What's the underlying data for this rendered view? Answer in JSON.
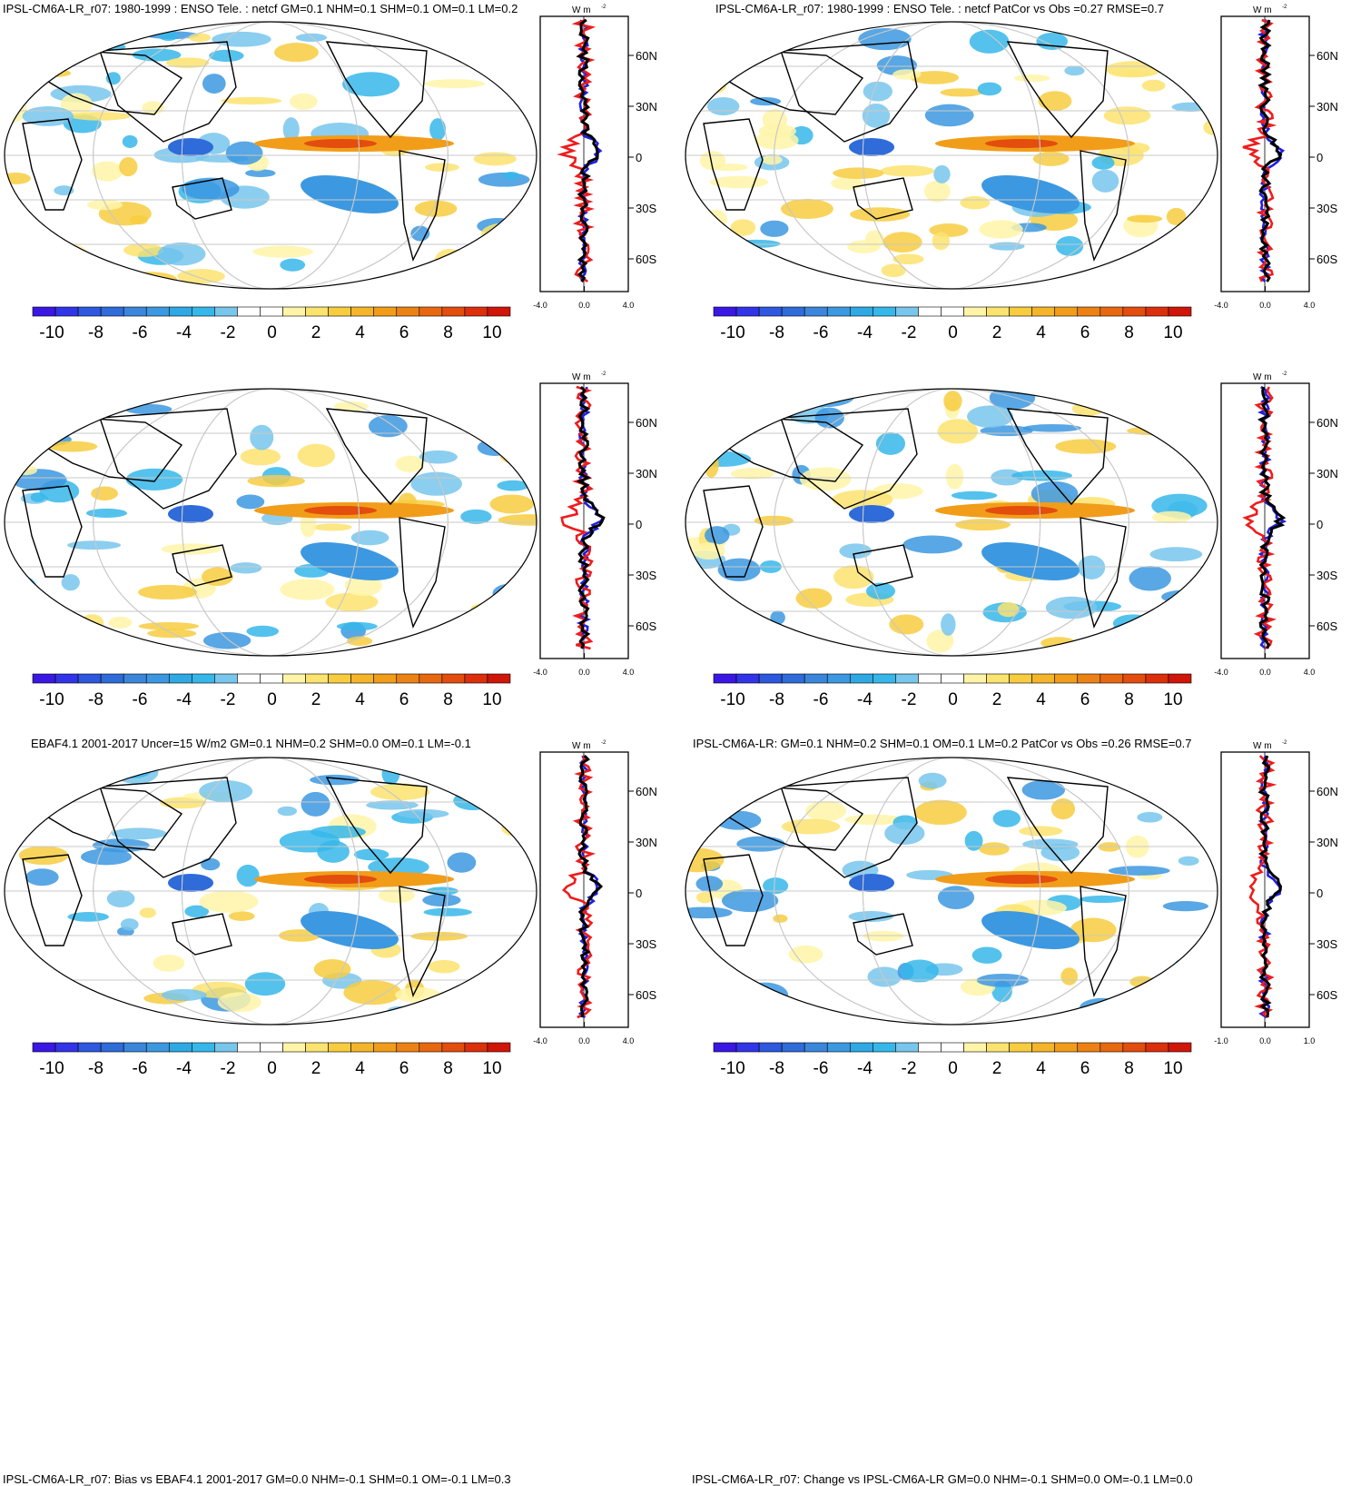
{
  "colorbar": {
    "colors": [
      "#3b17e3",
      "#3234e8",
      "#2d58df",
      "#2f6bd9",
      "#3b86db",
      "#3c98e0",
      "#2ea9e4",
      "#36b7ea",
      "#78c6ec",
      "#ffffff",
      "#ffffff",
      "#fff4a8",
      "#fbe36f",
      "#f7cc3f",
      "#f5b52a",
      "#f19d1a",
      "#ec8214",
      "#e86810",
      "#e34d0d",
      "#dc2f0b",
      "#d01509"
    ],
    "tick_labels": [
      "-10",
      "-8",
      "-6",
      "-4",
      "-2",
      "0",
      "2",
      "4",
      "6",
      "8",
      "10"
    ]
  },
  "profile": {
    "units": "W m",
    "units_sup": "-2",
    "lat_labels": [
      "60N",
      "30N",
      "0",
      "30S",
      "60S"
    ],
    "line_colors": {
      "model": "#1f1fe0",
      "obs": "#ee1c1c",
      "diff": "#000000"
    }
  },
  "panels": [
    {
      "title": "IPSL-CM6A-LR_r07: 1980-1999 : ENSO Tele. : netcf GM=0.1 NHM=0.1 SHM=0.1 OM=0.1 LM=0.2",
      "x_ticks": [
        "-4.0",
        "0.0",
        "4.0"
      ]
    },
    {
      "title": "IPSL-CM6A-LR_r07: 1980-1999 : ENSO Tele. : netcf PatCor vs Obs =0.27 RMSE=0.7",
      "x_ticks": [
        "-4.0",
        "0.0",
        "4.0"
      ]
    },
    {
      "title": "EBAF4.1 2001-2017 Uncer=15 W/m2 GM=0.1 NHM=0.2 SHM=0.0 OM=0.1 LM=-0.1",
      "x_ticks": [
        "-4.0",
        "0.0",
        "4.0"
      ]
    },
    {
      "title": "IPSL-CM6A-LR: GM=0.1 NHM=0.2 SHM=0.1 OM=0.1 LM=0.2 PatCor vs Obs =0.26 RMSE=0.7",
      "x_ticks": [
        "-4.0",
        "0.0",
        "4.0"
      ]
    },
    {
      "title": "IPSL-CM6A-LR_r07: Bias vs EBAF4.1 2001-2017 GM=0.0 NHM=-0.1 SHM=0.1 OM=-0.1 LM=0.3",
      "x_ticks": [
        "-4.0",
        "0.0",
        "4.0"
      ]
    },
    {
      "title": "IPSL-CM6A-LR_r07: Change vs IPSL-CM6A-LR GM=0.0 NHM=-0.1 SHM=0.0 OM=-0.1 LM=0.0",
      "x_ticks": [
        "-1.0",
        "0.0",
        "1.0"
      ]
    }
  ]
}
